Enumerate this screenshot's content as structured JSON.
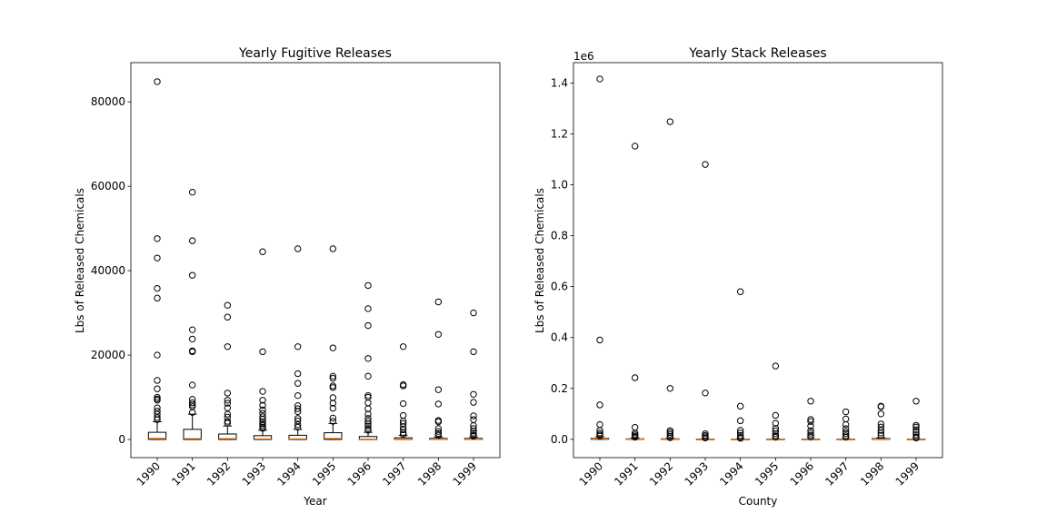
{
  "colors": {
    "box": "#000000",
    "median": "#ff7f0e",
    "flier": "#000000",
    "background": "#ffffff"
  },
  "chart_data": [
    {
      "type": "box",
      "title": "Yearly Fugitive Releases",
      "xlabel": "Year",
      "ylabel": "Lbs of Released Chemicals",
      "offset_label": "",
      "categories": [
        "1990",
        "1991",
        "1992",
        "1993",
        "1994",
        "1995",
        "1996",
        "1997",
        "1998",
        "1999"
      ],
      "ylim": [
        -4300,
        89300
      ],
      "yticks": [
        0,
        20000,
        40000,
        60000,
        80000
      ],
      "ytick_labels": [
        "0",
        "20000",
        "40000",
        "60000",
        "80000"
      ],
      "boxes": [
        {
          "q1": 0,
          "median": 300,
          "q3": 1700,
          "whisker_low": 0,
          "whisker_high": 4200,
          "fliers": [
            84800,
            47600,
            43000,
            35800,
            33500,
            20000,
            14000,
            12000,
            10000,
            9600,
            9300,
            7500,
            6700,
            6000,
            5200,
            4700
          ]
        },
        {
          "q1": 0,
          "median": 200,
          "q3": 2400,
          "whisker_low": 0,
          "whisker_high": 6000,
          "fliers": [
            58600,
            47100,
            38900,
            26000,
            23800,
            21000,
            20800,
            12900,
            9500,
            8700,
            8200,
            7800,
            6400
          ]
        },
        {
          "q1": 0,
          "median": 200,
          "q3": 1300,
          "whisker_low": 0,
          "whisker_high": 3200,
          "fliers": [
            31800,
            29000,
            22000,
            11000,
            9300,
            8600,
            7500,
            6000,
            5300,
            4300,
            3900
          ]
        },
        {
          "q1": 0,
          "median": 150,
          "q3": 900,
          "whisker_low": 0,
          "whisker_high": 2200,
          "fliers": [
            44500,
            20800,
            11400,
            9300,
            8100,
            7000,
            6200,
            5400,
            4800,
            4200,
            3700,
            3300,
            2900,
            2600
          ]
        },
        {
          "q1": 0,
          "median": 150,
          "q3": 1000,
          "whisker_low": 0,
          "whisker_high": 2400,
          "fliers": [
            45200,
            22000,
            15600,
            13300,
            10400,
            8000,
            7300,
            6600,
            5000,
            4400,
            3500,
            2900
          ]
        },
        {
          "q1": 0,
          "median": 250,
          "q3": 1600,
          "whisker_low": 0,
          "whisker_high": 3800,
          "fliers": [
            45200,
            21700,
            15000,
            14500,
            12700,
            12300,
            9900,
            8600,
            7400,
            5100,
            4300
          ]
        },
        {
          "q1": 0,
          "median": 100,
          "q3": 700,
          "whisker_low": 0,
          "whisker_high": 1700,
          "fliers": [
            36500,
            31000,
            27000,
            19200,
            15000,
            10400,
            10000,
            8700,
            7300,
            6000,
            5000,
            4300,
            3700,
            3200,
            2600,
            2200
          ]
        },
        {
          "q1": 0,
          "median": 80,
          "q3": 400,
          "whisker_low": 0,
          "whisker_high": 1000,
          "fliers": [
            22000,
            13000,
            12700,
            8500,
            5700,
            4400,
            3800,
            3000,
            2300,
            1600,
            1200
          ]
        },
        {
          "q1": 0,
          "median": 50,
          "q3": 250,
          "whisker_low": 0,
          "whisker_high": 600,
          "fliers": [
            32600,
            24900,
            11800,
            8400,
            4500,
            4200,
            2600,
            1900,
            1400,
            1000
          ]
        },
        {
          "q1": 0,
          "median": 50,
          "q3": 250,
          "whisker_low": 0,
          "whisker_high": 600,
          "fliers": [
            30000,
            20800,
            10700,
            8800,
            5600,
            4700,
            3300,
            2600,
            2000,
            1500,
            1000,
            800
          ]
        }
      ]
    },
    {
      "type": "box",
      "title": "Yearly Stack Releases",
      "xlabel": "County",
      "ylabel": "Lbs of Released Chemicals",
      "offset_label": "1e6",
      "categories": [
        "1990",
        "1991",
        "1992",
        "1993",
        "1994",
        "1995",
        "1996",
        "1997",
        "1998",
        "1999"
      ],
      "ylim": [
        -0.072,
        1.48
      ],
      "yticks": [
        0,
        0.2,
        0.4,
        0.6,
        0.8,
        1.0,
        1.2,
        1.4
      ],
      "ytick_labels": [
        "0.0",
        "0.2",
        "0.4",
        "0.6",
        "0.8",
        "1.0",
        "1.2",
        "1.4"
      ],
      "boxes": [
        {
          "q1": 0,
          "median": 0.002,
          "q3": 0.004,
          "whisker_low": 0,
          "whisker_high": 0.01,
          "fliers": [
            1.416,
            0.39,
            0.135,
            0.058,
            0.035,
            0.025,
            0.018,
            0.013
          ]
        },
        {
          "q1": 0,
          "median": 0.001,
          "q3": 0.002,
          "whisker_low": 0,
          "whisker_high": 0.005,
          "fliers": [
            1.152,
            0.242,
            0.047,
            0.025,
            0.018,
            0.012,
            0.008
          ]
        },
        {
          "q1": 0,
          "median": 0.001,
          "q3": 0.002,
          "whisker_low": 0,
          "whisker_high": 0.004,
          "fliers": [
            1.248,
            0.2,
            0.034,
            0.027,
            0.02,
            0.012,
            0.006
          ]
        },
        {
          "q1": 0,
          "median": 0.0005,
          "q3": 0.001,
          "whisker_low": 0,
          "whisker_high": 0.002,
          "fliers": [
            1.08,
            0.182,
            0.022,
            0.015,
            0.01,
            0.005
          ]
        },
        {
          "q1": 0,
          "median": 0.0005,
          "q3": 0.001,
          "whisker_low": 0,
          "whisker_high": 0.002,
          "fliers": [
            0.58,
            0.13,
            0.073,
            0.035,
            0.025,
            0.015,
            0.008,
            0.004
          ]
        },
        {
          "q1": 0,
          "median": 0.0005,
          "q3": 0.001,
          "whisker_low": 0,
          "whisker_high": 0.002,
          "fliers": [
            0.288,
            0.094,
            0.063,
            0.043,
            0.033,
            0.022,
            0.014,
            0.008
          ]
        },
        {
          "q1": 0,
          "median": 0.0005,
          "q3": 0.001,
          "whisker_low": 0,
          "whisker_high": 0.002,
          "fliers": [
            0.15,
            0.078,
            0.07,
            0.052,
            0.034,
            0.024,
            0.016,
            0.009
          ]
        },
        {
          "q1": 0,
          "median": 0.0005,
          "q3": 0.001,
          "whisker_low": 0,
          "whisker_high": 0.002,
          "fliers": [
            0.108,
            0.08,
            0.058,
            0.042,
            0.03,
            0.022,
            0.014,
            0.008
          ]
        },
        {
          "q1": 0,
          "median": 0.001,
          "q3": 0.003,
          "whisker_low": 0,
          "whisker_high": 0.006,
          "fliers": [
            0.13,
            0.128,
            0.1,
            0.06,
            0.048,
            0.035,
            0.025,
            0.016
          ]
        },
        {
          "q1": 0,
          "median": 0.0005,
          "q3": 0.001,
          "whisker_low": 0,
          "whisker_high": 0.002,
          "fliers": [
            0.15,
            0.055,
            0.048,
            0.038,
            0.028,
            0.018,
            0.01,
            0.005
          ]
        }
      ]
    }
  ]
}
